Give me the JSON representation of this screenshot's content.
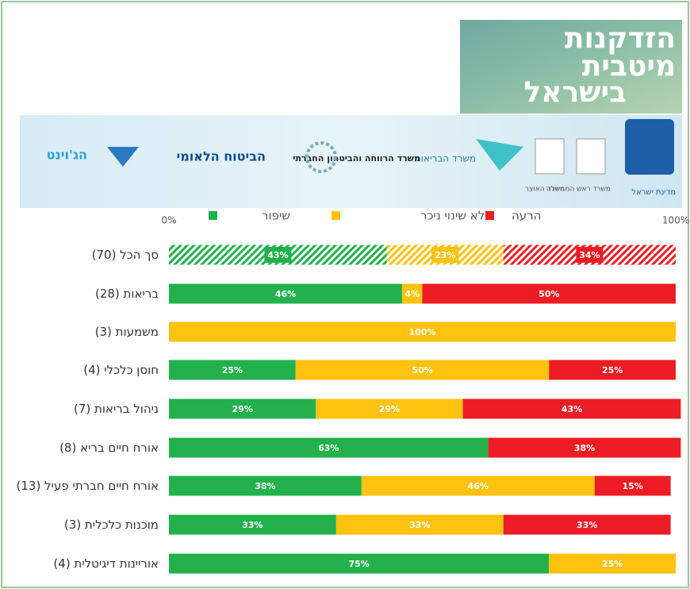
{
  "header": {
    "title_lines": [
      "הזדקנות",
      "מיטבית",
      "בישראל"
    ],
    "logos": [
      "מדינת ישראל",
      "משרד ראש הממשלה",
      "משרד האוצר",
      "משרד הבריאות",
      "משרד הרווחה והביטחון החברתי",
      "הביטוח הלאומי",
      "הג'וינט"
    ]
  },
  "chart_data": {
    "type": "stacked-bar-horizontal",
    "categories": [
      "סך הכל (70)",
      "בריאות (28)",
      "משמעות (3)",
      "חוסן כלכלי (4)",
      "ניהול בריאות (7)",
      "אורח חיים בריא (8)",
      "אורח חיים חברתי פעיל (13)",
      "מוכנות כלכלית (3)",
      "אוריינות דיגיטלית (4)"
    ],
    "series": [
      {
        "name": "שיפור",
        "color": "#22b14c",
        "values": [
          43,
          46,
          0,
          25,
          29,
          63,
          38,
          33,
          75
        ],
        "value_labels": [
          "43%",
          "46%",
          null,
          "25%",
          "29%",
          "63%",
          "38%",
          "33%",
          "75%"
        ]
      },
      {
        "name": "ללא שינוי ניכר",
        "color": "#ffc20e",
        "values": [
          23,
          4,
          100,
          50,
          29,
          0,
          46,
          33,
          25
        ],
        "value_labels": [
          "23%",
          "4%",
          "100%",
          "50%",
          "29%",
          null,
          "46%",
          "33%",
          "25%"
        ]
      },
      {
        "name": "הרעה",
        "color": "#ed1c24",
        "values": [
          34,
          50,
          0,
          25,
          43,
          38,
          15,
          33,
          0
        ],
        "value_labels": [
          "34%",
          "50%",
          null,
          "25%",
          "43%",
          "38%",
          "15%",
          "33%",
          null
        ]
      }
    ],
    "hatched_categories": [
      0
    ],
    "xlim": [
      0,
      100
    ],
    "xticks": [
      {
        "value": 0,
        "label": "0%"
      },
      {
        "value": 100,
        "label": "100%"
      }
    ]
  }
}
